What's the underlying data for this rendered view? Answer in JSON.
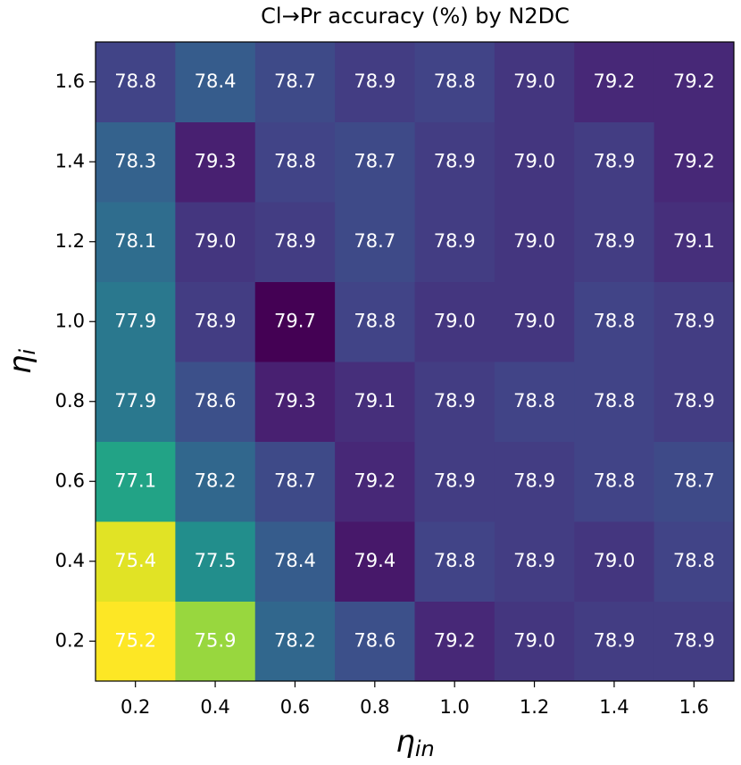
{
  "chart_data": {
    "type": "heatmap",
    "title": "Cl→Pr accuracy (%) by N2DC",
    "xlabel": {
      "text": "η",
      "subscript": "in"
    },
    "ylabel": {
      "text": "η",
      "subscript": "i"
    },
    "x": [
      "0.2",
      "0.4",
      "0.6",
      "0.8",
      "1.0",
      "1.2",
      "1.4",
      "1.6"
    ],
    "y": [
      "0.2",
      "0.4",
      "0.6",
      "0.8",
      "1.0",
      "1.2",
      "1.4",
      "1.6"
    ],
    "values": [
      [
        75.2,
        75.9,
        78.2,
        78.6,
        79.2,
        79.0,
        78.9,
        78.9
      ],
      [
        75.4,
        77.5,
        78.4,
        79.4,
        78.8,
        78.9,
        79.0,
        78.8
      ],
      [
        77.1,
        78.2,
        78.7,
        79.2,
        78.9,
        78.9,
        78.8,
        78.7
      ],
      [
        77.9,
        78.6,
        79.3,
        79.1,
        78.9,
        78.8,
        78.8,
        78.9
      ],
      [
        77.9,
        78.9,
        79.7,
        78.8,
        79.0,
        79.0,
        78.8,
        78.9
      ],
      [
        78.1,
        79.0,
        78.9,
        78.7,
        78.9,
        79.0,
        78.9,
        79.1
      ],
      [
        78.3,
        79.3,
        78.8,
        78.7,
        78.9,
        79.0,
        78.9,
        79.2
      ],
      [
        78.8,
        78.4,
        78.7,
        78.9,
        78.8,
        79.0,
        79.2,
        79.2
      ]
    ],
    "value_labels": [
      [
        "75.2",
        "75.9",
        "78.2",
        "78.6",
        "79.2",
        "79.0",
        "78.9",
        "78.9"
      ],
      [
        "75.4",
        "77.5",
        "78.4",
        "79.4",
        "78.8",
        "78.9",
        "79.0",
        "78.8"
      ],
      [
        "77.1",
        "78.2",
        "78.7",
        "79.2",
        "78.9",
        "78.9",
        "78.8",
        "78.7"
      ],
      [
        "77.9",
        "78.6",
        "79.3",
        "79.1",
        "78.9",
        "78.8",
        "78.8",
        "78.9"
      ],
      [
        "77.9",
        "78.9",
        "79.7",
        "78.8",
        "79.0",
        "79.0",
        "78.8",
        "78.9"
      ],
      [
        "78.1",
        "79.0",
        "78.9",
        "78.7",
        "78.9",
        "79.0",
        "78.9",
        "79.1"
      ],
      [
        "78.3",
        "79.3",
        "78.8",
        "78.7",
        "78.9",
        "79.0",
        "78.9",
        "79.2"
      ],
      [
        "78.8",
        "78.4",
        "78.7",
        "78.9",
        "78.8",
        "79.0",
        "79.2",
        "79.2"
      ]
    ],
    "colormap": "viridis_r",
    "label_color": "#ffffff"
  }
}
